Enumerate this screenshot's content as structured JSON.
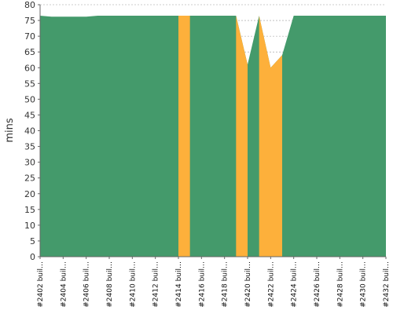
{
  "chart_data": {
    "type": "area",
    "ylabel": "mins",
    "xlabel": "",
    "ylim": [
      0,
      80
    ],
    "yticks": [
      0,
      5,
      10,
      15,
      20,
      25,
      30,
      35,
      40,
      45,
      50,
      55,
      60,
      65,
      70,
      75,
      80
    ],
    "grid": true,
    "x": [
      2402,
      2403,
      2404,
      2405,
      2406,
      2407,
      2408,
      2409,
      2410,
      2411,
      2412,
      2413,
      2414,
      2415,
      2416,
      2417,
      2418,
      2419,
      2420,
      2421,
      2422,
      2423,
      2424,
      2425,
      2426,
      2427,
      2428,
      2429,
      2430,
      2431,
      2432
    ],
    "tick_labels": [
      "#2402 buil…",
      "#2404 buil…",
      "#2406 buil…",
      "#2408 buil…",
      "#2410 buil…",
      "#2412 buil…",
      "#2414 buil…",
      "#2416 buil…",
      "#2418 buil…",
      "#2420 buil…",
      "#2422 buil…",
      "#2424 buil…",
      "#2426 buil…",
      "#2428 buil…",
      "#2430 buil…",
      "#2432 buil…"
    ],
    "series": [
      {
        "status": "success",
        "color": "#449a6b",
        "values": [
          76.5,
          76.2,
          76.2,
          76.2,
          76.2,
          76.5,
          76.5,
          76.5,
          76.5,
          76.5,
          76.5,
          76.5,
          76.5,
          76.5,
          76.5,
          76.5,
          76.5,
          76.5,
          61.0,
          76.5,
          60.0,
          64.0,
          76.5,
          76.5,
          76.5,
          76.5,
          76.5,
          76.5,
          76.5,
          76.5,
          76.5
        ]
      }
    ],
    "highlight_spans": [
      {
        "status": "failed",
        "color": "#fdb03b",
        "from": 2414,
        "to": 2415
      },
      {
        "status": "failed",
        "color": "#fdb03b",
        "from": 2419,
        "to": 2420
      },
      {
        "status": "failed",
        "color": "#fdb03b",
        "from": 2421,
        "to": 2423
      }
    ]
  }
}
